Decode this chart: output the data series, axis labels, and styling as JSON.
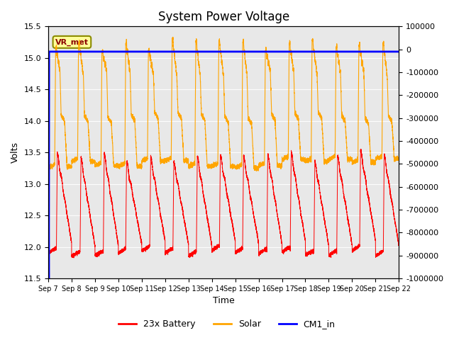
{
  "title": "System Power Voltage",
  "xlabel": "Time",
  "ylabel": "Volts",
  "ylim_left": [
    11.5,
    15.5
  ],
  "ylim_right": [
    -1000000,
    100000
  ],
  "yticks_right": [
    100000,
    0,
    -100000,
    -200000,
    -300000,
    -400000,
    -500000,
    -600000,
    -700000,
    -800000,
    -900000,
    -1000000
  ],
  "xtick_labels": [
    "Sep 7",
    "Sep 8",
    "Sep 9",
    "Sep 10",
    "Sep 11",
    "Sep 12",
    "Sep 13",
    "Sep 14",
    "Sep 15",
    "Sep 16",
    "Sep 17",
    "Sep 18",
    "Sep 19",
    "Sep 20",
    "Sep 21",
    "Sep 22"
  ],
  "annotation_text": "VR_met",
  "cm1_value": 15.1,
  "n_days": 15,
  "plot_bg_color": "#e8e8e8"
}
